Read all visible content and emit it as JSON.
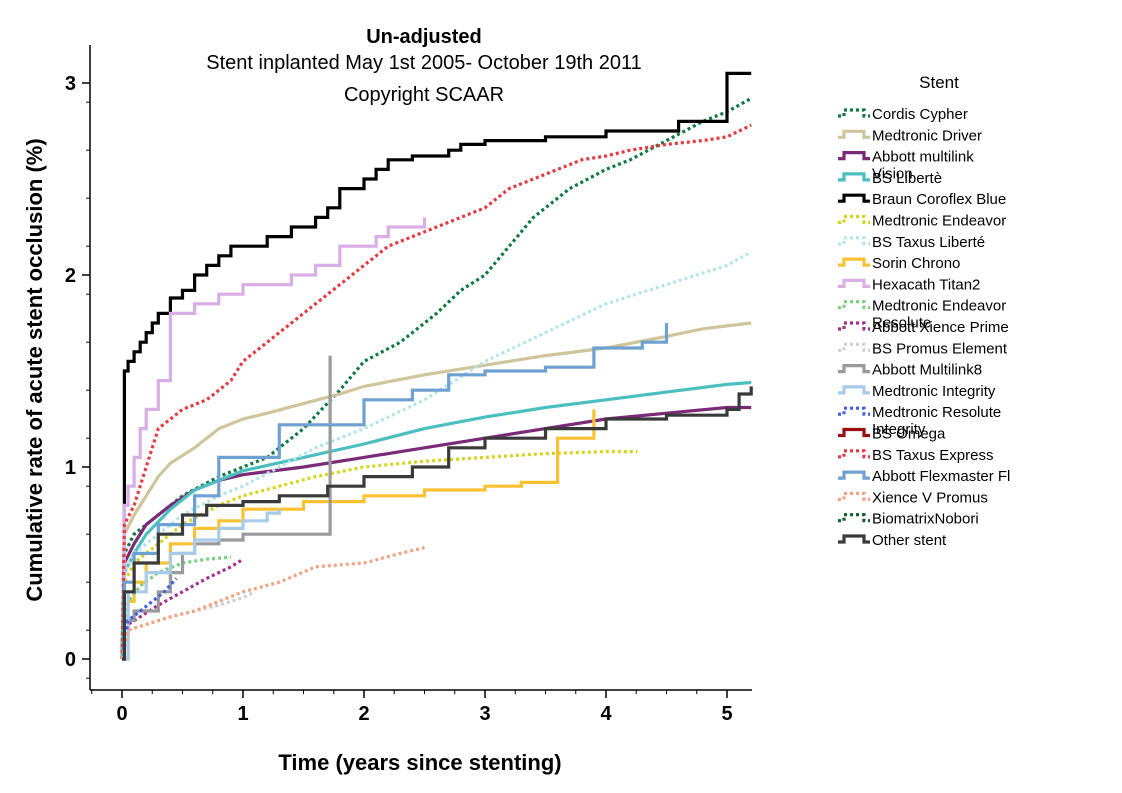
{
  "chart_data": {
    "type": "line",
    "title": "Un-adjusted",
    "subtitle_lines": [
      "Stent inplanted May 1st 2005- October 19th 2011",
      "Copyright SCAAR"
    ],
    "xlabel": "Time (years since stenting)",
    "ylabel": "Cumulative rate of acute stent occlusion (%)",
    "xlim": [
      -0.25,
      5.2
    ],
    "ylim": [
      -0.17,
      3.15
    ],
    "x_ticks": [
      0,
      1,
      2,
      3,
      4,
      5
    ],
    "y_ticks": [
      0,
      1,
      2,
      3
    ],
    "legend_title": "Stent",
    "legend_placement": "right",
    "grid": false,
    "series": [
      {
        "name": "Cordis Cypher",
        "color": "#0b7a3e",
        "dash": "dot",
        "x": [
          0,
          0.02,
          0.1,
          0.3,
          0.5,
          0.8,
          1.0,
          1.2,
          1.5,
          1.8,
          2.0,
          2.3,
          2.6,
          2.8,
          3.0,
          3.2,
          3.4,
          3.7,
          4.0,
          4.2,
          4.5,
          4.8,
          5.0,
          5.2
        ],
        "y": [
          0,
          0.55,
          0.65,
          0.75,
          0.85,
          0.95,
          1.0,
          1.05,
          1.2,
          1.4,
          1.55,
          1.65,
          1.8,
          1.92,
          2.0,
          2.15,
          2.3,
          2.45,
          2.55,
          2.6,
          2.7,
          2.8,
          2.85,
          2.92
        ]
      },
      {
        "name": "Medtronic Driver",
        "color": "#cfc59b",
        "dash": "solid",
        "x": [
          0,
          0.02,
          0.1,
          0.2,
          0.3,
          0.4,
          0.6,
          0.8,
          1.0,
          1.2,
          1.5,
          1.8,
          2.0,
          2.5,
          3.0,
          3.5,
          4.0,
          4.5,
          4.8,
          5.2
        ],
        "y": [
          0,
          0.65,
          0.75,
          0.85,
          0.95,
          1.02,
          1.1,
          1.2,
          1.25,
          1.28,
          1.33,
          1.38,
          1.42,
          1.48,
          1.53,
          1.58,
          1.62,
          1.68,
          1.72,
          1.75
        ]
      },
      {
        "name": "Abbott multilink Vision",
        "color": "#7b2a77",
        "dash": "solid",
        "x": [
          0,
          0.02,
          0.1,
          0.2,
          0.4,
          0.6,
          0.8,
          1.0,
          1.5,
          2.0,
          2.5,
          3.0,
          3.5,
          4.0,
          4.5,
          5.0,
          5.2
        ],
        "y": [
          0,
          0.5,
          0.6,
          0.7,
          0.8,
          0.88,
          0.93,
          0.96,
          1.0,
          1.05,
          1.1,
          1.15,
          1.2,
          1.25,
          1.28,
          1.31,
          1.31
        ]
      },
      {
        "name": "BS Libertè",
        "color": "#4bbfbf",
        "dash": "solid",
        "x": [
          0,
          0.02,
          0.1,
          0.2,
          0.4,
          0.6,
          0.8,
          1.0,
          1.5,
          2.0,
          2.5,
          3.0,
          3.5,
          4.0,
          4.5,
          5.0,
          5.2
        ],
        "y": [
          0,
          0.45,
          0.55,
          0.65,
          0.78,
          0.88,
          0.93,
          0.98,
          1.05,
          1.12,
          1.2,
          1.26,
          1.31,
          1.35,
          1.39,
          1.43,
          1.44
        ]
      },
      {
        "name": "Braun Coroflex Blue",
        "color": "#000000",
        "dash": "solid",
        "step": true,
        "x": [
          0,
          0.02,
          0.05,
          0.1,
          0.15,
          0.2,
          0.25,
          0.3,
          0.4,
          0.5,
          0.6,
          0.7,
          0.8,
          0.9,
          1.0,
          1.2,
          1.4,
          1.6,
          1.7,
          1.8,
          2.0,
          2.1,
          2.2,
          2.4,
          2.7,
          2.8,
          3.0,
          3.5,
          4.0,
          4.4,
          4.6,
          4.8,
          5.0,
          5.2
        ],
        "y": [
          0,
          1.5,
          1.55,
          1.6,
          1.65,
          1.7,
          1.75,
          1.8,
          1.88,
          1.92,
          2.0,
          2.05,
          2.1,
          2.15,
          2.15,
          2.2,
          2.25,
          2.3,
          2.35,
          2.45,
          2.5,
          2.55,
          2.6,
          2.62,
          2.65,
          2.68,
          2.7,
          2.72,
          2.75,
          2.75,
          2.8,
          2.8,
          3.05,
          3.05
        ]
      },
      {
        "name": "Medtronic Endeavor",
        "color": "#d7d41f",
        "dash": "dot",
        "x": [
          0,
          0.02,
          0.1,
          0.3,
          0.5,
          0.8,
          1.0,
          1.3,
          1.6,
          2.0,
          2.5,
          3.0,
          3.5,
          4.0,
          4.26
        ],
        "y": [
          0,
          0.4,
          0.5,
          0.6,
          0.7,
          0.8,
          0.85,
          0.9,
          0.95,
          1.0,
          1.03,
          1.05,
          1.07,
          1.08,
          1.08
        ]
      },
      {
        "name": "BS Taxus Liberté",
        "color": "#b3e4ea",
        "dash": "dot",
        "x": [
          0,
          0.02,
          0.1,
          0.3,
          0.5,
          0.8,
          1.0,
          1.3,
          1.6,
          2.0,
          2.5,
          3.0,
          3.5,
          4.0,
          4.5,
          5.0,
          5.2
        ],
        "y": [
          0,
          0.45,
          0.55,
          0.65,
          0.75,
          0.85,
          0.9,
          1.0,
          1.1,
          1.2,
          1.35,
          1.55,
          1.7,
          1.85,
          1.95,
          2.05,
          2.12
        ]
      },
      {
        "name": "Sorin Chrono",
        "color": "#f9c233",
        "dash": "solid",
        "step": true,
        "x": [
          0,
          0.05,
          0.1,
          0.2,
          0.4,
          0.6,
          0.8,
          1.0,
          1.5,
          2.0,
          2.5,
          3.0,
          3.3,
          3.6,
          3.9
        ],
        "y": [
          0,
          0.3,
          0.4,
          0.5,
          0.6,
          0.68,
          0.72,
          0.78,
          0.82,
          0.85,
          0.88,
          0.9,
          0.92,
          1.15,
          1.3
        ]
      },
      {
        "name": "Hexacath Titan2",
        "color": "#d9aee5",
        "dash": "solid",
        "step": true,
        "x": [
          0,
          0.02,
          0.05,
          0.1,
          0.15,
          0.2,
          0.3,
          0.4,
          0.6,
          0.8,
          1.0,
          1.2,
          1.4,
          1.6,
          1.8,
          2.0,
          2.1,
          2.2,
          2.4,
          2.5
        ],
        "y": [
          0,
          0.8,
          0.9,
          1.05,
          1.2,
          1.3,
          1.45,
          1.8,
          1.85,
          1.9,
          1.95,
          1.95,
          2.0,
          2.05,
          2.15,
          2.15,
          2.2,
          2.25,
          2.25,
          2.3
        ]
      },
      {
        "name": "Medtronic Endeavor Resolute",
        "color": "#78cf7c",
        "dash": "dot",
        "x": [
          0,
          0.05,
          0.15,
          0.3,
          0.5,
          0.7,
          0.9
        ],
        "y": [
          0,
          0.3,
          0.38,
          0.45,
          0.5,
          0.52,
          0.53
        ]
      },
      {
        "name": "Abbott Xience Prime",
        "color": "#a82a8e",
        "dash": "dot",
        "x": [
          0,
          0.05,
          0.15,
          0.3,
          0.5,
          0.7,
          0.9,
          1.0
        ],
        "y": [
          0,
          0.18,
          0.22,
          0.28,
          0.35,
          0.42,
          0.48,
          0.52
        ]
      },
      {
        "name": "BS Promus Element",
        "color": "#cfcfcf",
        "dash": "dot",
        "x": [
          0,
          0.05,
          0.2,
          0.4,
          0.6,
          0.8,
          1.0,
          1.1
        ],
        "y": [
          0,
          0.15,
          0.18,
          0.22,
          0.25,
          0.28,
          0.32,
          0.35
        ]
      },
      {
        "name": "Abbott Multilink8",
        "color": "#9a9a9a",
        "dash": "solid",
        "step": true,
        "x": [
          0,
          0.02,
          0.1,
          0.3,
          0.4,
          0.5,
          0.6,
          0.8,
          1.0,
          1.2,
          1.5,
          1.72,
          1.72
        ],
        "y": [
          0,
          0.2,
          0.25,
          0.35,
          0.45,
          0.55,
          0.6,
          0.62,
          0.65,
          0.65,
          0.65,
          0.65,
          1.58
        ]
      },
      {
        "name": "Medtronic Integrity",
        "color": "#a8cbe9",
        "dash": "solid",
        "step": true,
        "x": [
          0,
          0.05,
          0.2,
          0.4,
          0.6,
          0.8,
          1.0,
          1.2,
          1.3
        ],
        "y": [
          0,
          0.35,
          0.45,
          0.55,
          0.62,
          0.68,
          0.72,
          0.76,
          0.78
        ]
      },
      {
        "name": "Medtronic Resolute Integrity",
        "color": "#3f5fe8",
        "dash": "dot",
        "x": [
          0,
          0.05,
          0.15,
          0.25,
          0.35,
          0.45
        ],
        "y": [
          0,
          0.2,
          0.25,
          0.3,
          0.35,
          0.42
        ]
      },
      {
        "name": "BS Omega",
        "color": "#9a1010",
        "dash": "solid",
        "x": [],
        "y": []
      },
      {
        "name": "BS Taxus Express",
        "color": "#e8383f",
        "dash": "dot",
        "x": [
          0,
          0.02,
          0.1,
          0.2,
          0.3,
          0.5,
          0.7,
          0.9,
          1.0,
          1.2,
          1.4,
          1.6,
          1.8,
          2.0,
          2.2,
          2.4,
          2.6,
          2.8,
          3.0,
          3.2,
          3.4,
          3.6,
          3.8,
          4.0,
          4.2,
          4.5,
          4.8,
          5.0,
          5.2
        ],
        "y": [
          0,
          0.7,
          0.8,
          1.0,
          1.2,
          1.3,
          1.35,
          1.45,
          1.55,
          1.65,
          1.75,
          1.85,
          1.95,
          2.05,
          2.15,
          2.2,
          2.25,
          2.3,
          2.35,
          2.45,
          2.5,
          2.55,
          2.6,
          2.62,
          2.65,
          2.68,
          2.7,
          2.72,
          2.78
        ]
      },
      {
        "name": "Abbott Flexmaster Fl",
        "color": "#6fa0d2",
        "dash": "solid",
        "step": true,
        "x": [
          0,
          0.02,
          0.1,
          0.3,
          0.6,
          0.8,
          1.0,
          1.3,
          1.6,
          2.0,
          2.4,
          2.7,
          3.0,
          3.5,
          3.9,
          4.3,
          4.5,
          4.5
        ],
        "y": [
          0,
          0.4,
          0.55,
          0.7,
          0.85,
          1.05,
          1.05,
          1.22,
          1.22,
          1.35,
          1.4,
          1.48,
          1.5,
          1.52,
          1.62,
          1.65,
          1.65,
          1.75
        ]
      },
      {
        "name": "Xience V Promus",
        "color": "#f4a283",
        "dash": "dot",
        "x": [
          0,
          0.05,
          0.2,
          0.4,
          0.6,
          0.8,
          1.0,
          1.3,
          1.6,
          2.0,
          2.3,
          2.5
        ],
        "y": [
          0,
          0.15,
          0.18,
          0.22,
          0.25,
          0.3,
          0.35,
          0.4,
          0.48,
          0.5,
          0.55,
          0.58
        ]
      },
      {
        "name": "BiomatrixNobori",
        "color": "#0b5d2e",
        "dash": "dot",
        "x": [],
        "y": []
      },
      {
        "name": "Other stent",
        "color": "#3a3a3a",
        "dash": "solid",
        "step": true,
        "x": [
          0,
          0.02,
          0.1,
          0.3,
          0.5,
          0.7,
          1.0,
          1.3,
          1.7,
          2.0,
          2.4,
          2.7,
          3.0,
          3.5,
          4.0,
          4.5,
          5.0,
          5.1,
          5.2
        ],
        "y": [
          0,
          0.35,
          0.5,
          0.65,
          0.75,
          0.8,
          0.82,
          0.85,
          0.9,
          0.95,
          1.0,
          1.1,
          1.15,
          1.2,
          1.25,
          1.27,
          1.3,
          1.38,
          1.42
        ]
      }
    ]
  }
}
